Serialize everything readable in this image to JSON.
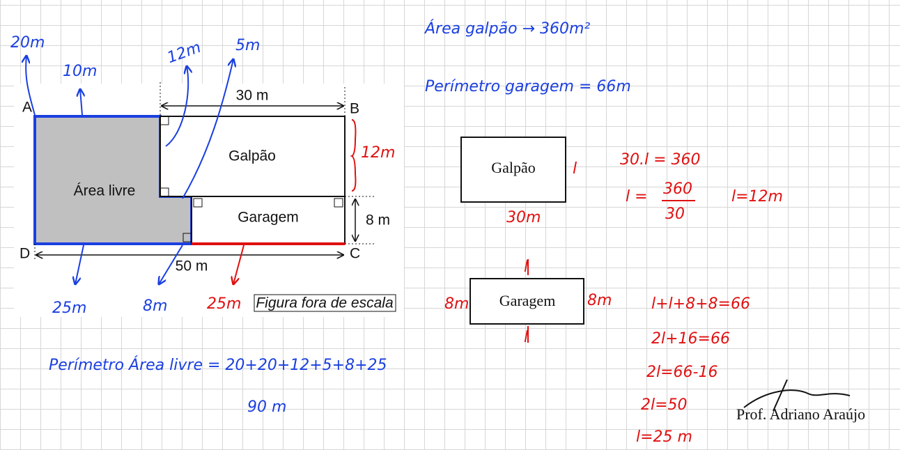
{
  "figure": {
    "vertices": [
      "A",
      "B",
      "C",
      "D"
    ],
    "top_dimension": "30 m",
    "galpao": "Galpão",
    "area_livre": "Área livre",
    "garagem": "Garagem",
    "right_dimension": "8 m",
    "bottom_dimension": "50 m",
    "scale_note": "Figura fora de escala"
  },
  "annotations": [
    "20m",
    "10m",
    "12m",
    "5m",
    "12m",
    "25m",
    "8m",
    "25m"
  ],
  "notes": [
    "Área galpão → 360m²",
    "Perímetro garagem = 66m"
  ],
  "galpao_box": {
    "label": "Galpão",
    "side": "l",
    "base": "30m"
  },
  "galpao_eq": [
    "30.l = 360",
    "l =",
    "360",
    "30",
    "l=12m"
  ],
  "garagem_box": {
    "label": "Garagem",
    "top": "l",
    "bottom": "l",
    "left": "8m",
    "right": "8m"
  },
  "garagem_eq": [
    "l+l+8+8=66",
    "2l+16=66",
    "2l=66-16",
    "2l=50",
    "l=25 m"
  ],
  "perimeter": [
    "Perímetro Área livre = 20+20+12+5+8+25",
    "90 m"
  ],
  "signature": "Prof. Adriano Araújo"
}
